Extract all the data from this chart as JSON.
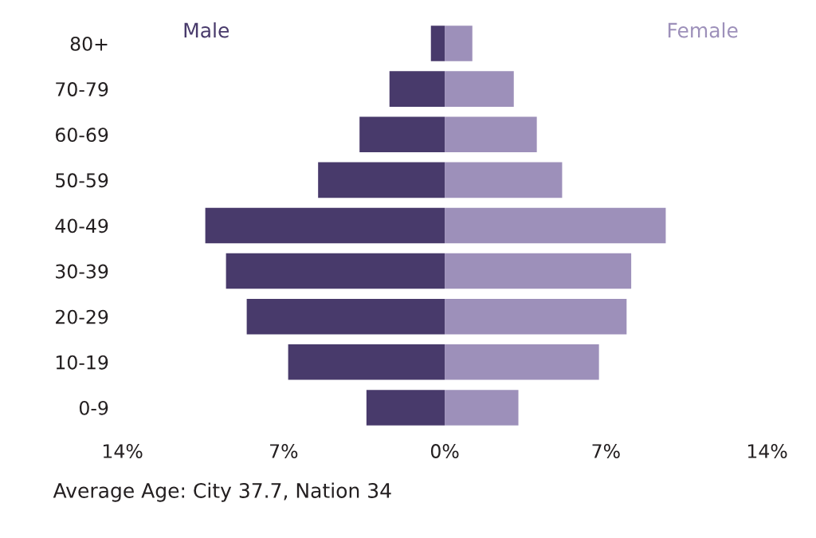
{
  "chart_data": {
    "type": "bar",
    "orientation": "horizontal",
    "stacked": true,
    "categories": [
      "80+",
      "70-79",
      "60-69",
      "50-59",
      "40-49",
      "30-39",
      "20-29",
      "10-19",
      "0-9"
    ],
    "series": [
      {
        "name": "Male",
        "color": "#483a6b",
        "values": [
          -0.6,
          -2.4,
          -3.7,
          -5.5,
          -10.4,
          -9.5,
          -8.6,
          -6.8,
          -3.4
        ]
      },
      {
        "name": "Female",
        "color": "#9d90ba",
        "values": [
          1.2,
          3.0,
          4.0,
          5.1,
          9.6,
          8.1,
          7.9,
          6.7,
          3.2
        ]
      }
    ],
    "xlim": [
      -14,
      14
    ],
    "xticks": [
      {
        "value": -14,
        "label": "14%"
      },
      {
        "value": -7,
        "label": "7%"
      },
      {
        "value": 0,
        "label": "0%"
      },
      {
        "value": 7,
        "label": "7%"
      },
      {
        "value": 14,
        "label": "14%"
      }
    ],
    "grid": false,
    "annotations": [
      "Average Age: City 37.7, Nation 34"
    ]
  }
}
